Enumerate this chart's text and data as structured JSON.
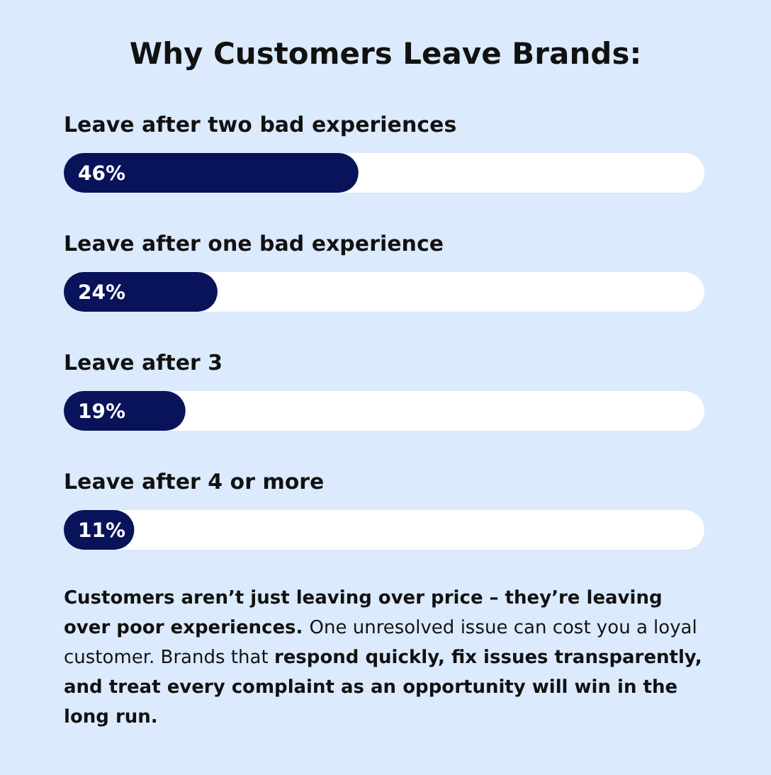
{
  "chart_data": {
    "type": "bar",
    "orientation": "horizontal",
    "title": "Why Customers Leave Brands:",
    "categories": [
      "Leave after two bad experiences",
      "Leave after one bad experience",
      "Leave after 3",
      "Leave after 4 or more"
    ],
    "values": [
      46,
      24,
      19,
      11
    ],
    "value_labels": [
      "46%",
      "24%",
      "19%",
      "11%"
    ],
    "color": "#08135a",
    "xlim": [
      0,
      100
    ],
    "annotations": [
      "Customers aren’t just leaving over price – they’re leaving over poor experiences.",
      "One unresolved issue can cost you a loyal customer. Brands that ",
      "respond quickly, fix issues transparently, and treat every complaint as an opportunity will win in the long run."
    ]
  }
}
